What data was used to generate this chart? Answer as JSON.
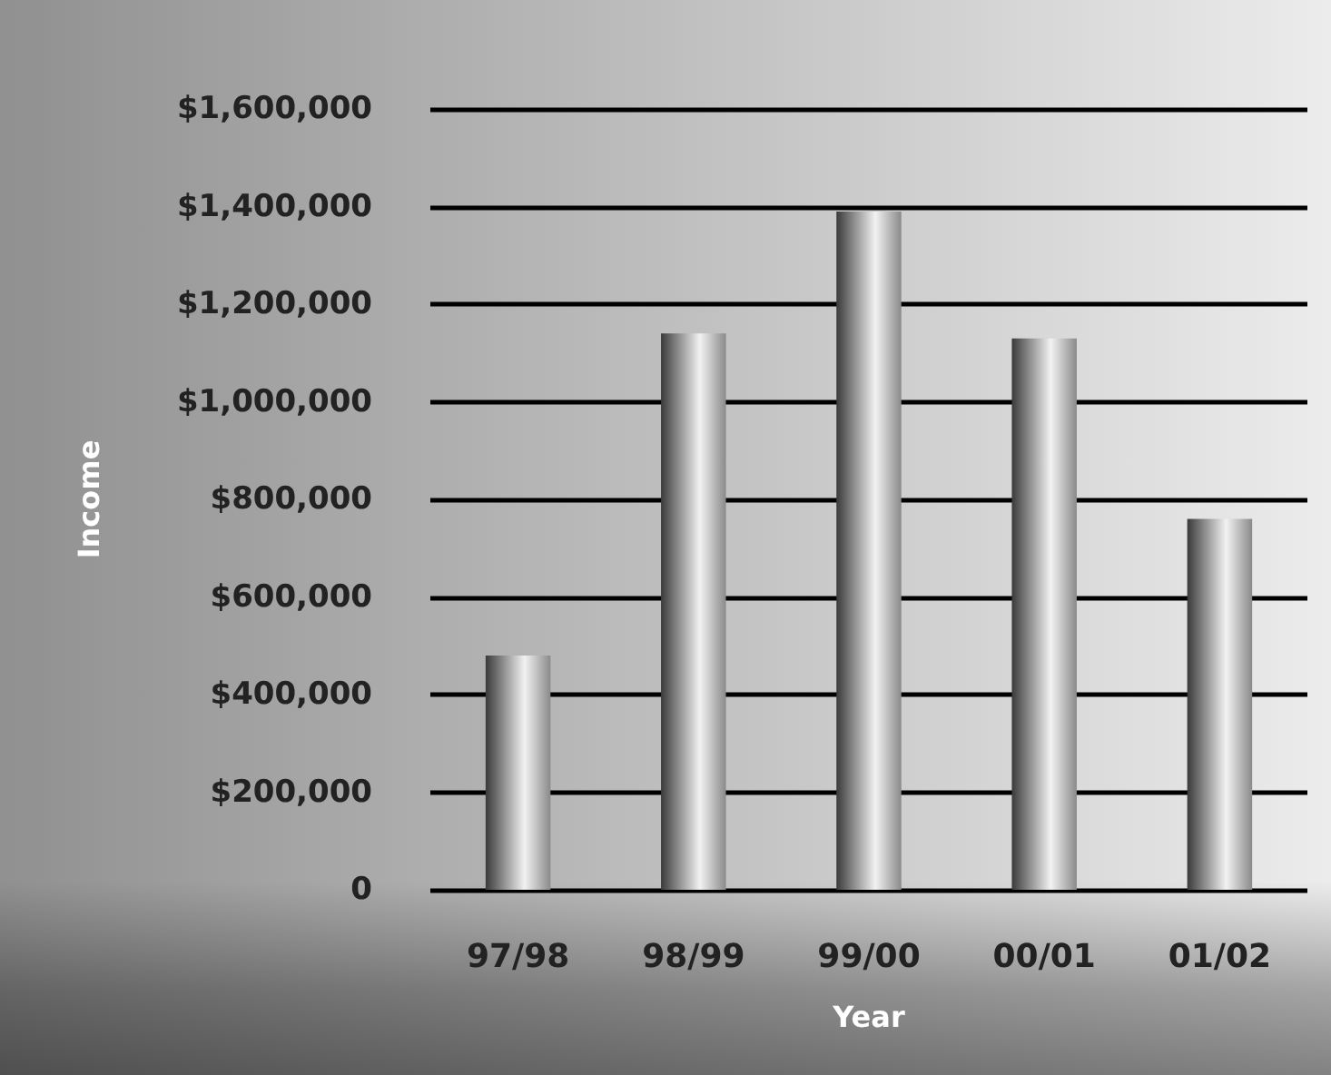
{
  "chart_data": {
    "type": "bar",
    "xlabel": "Year",
    "ylabel": "Income",
    "categories": [
      "97/98",
      "98/99",
      "99/00",
      "00/01",
      "01/02"
    ],
    "values": [
      480000,
      1140000,
      1390000,
      1130000,
      760000
    ],
    "color": "#8a8a8a",
    "ylim": [
      0,
      1600000
    ],
    "yticks": [
      {
        "value": 0,
        "label": "0"
      },
      {
        "value": 200000,
        "label": "$200,000"
      },
      {
        "value": 400000,
        "label": "$400,000"
      },
      {
        "value": 600000,
        "label": "$600,000"
      },
      {
        "value": 800000,
        "label": "$800,000"
      },
      {
        "value": 1000000,
        "label": "$1,000,000"
      },
      {
        "value": 1200000,
        "label": "$1,200,000"
      },
      {
        "value": 1400000,
        "label": "$1,400,000"
      },
      {
        "value": 1600000,
        "label": "$1,600,000"
      }
    ],
    "grid": "y"
  }
}
